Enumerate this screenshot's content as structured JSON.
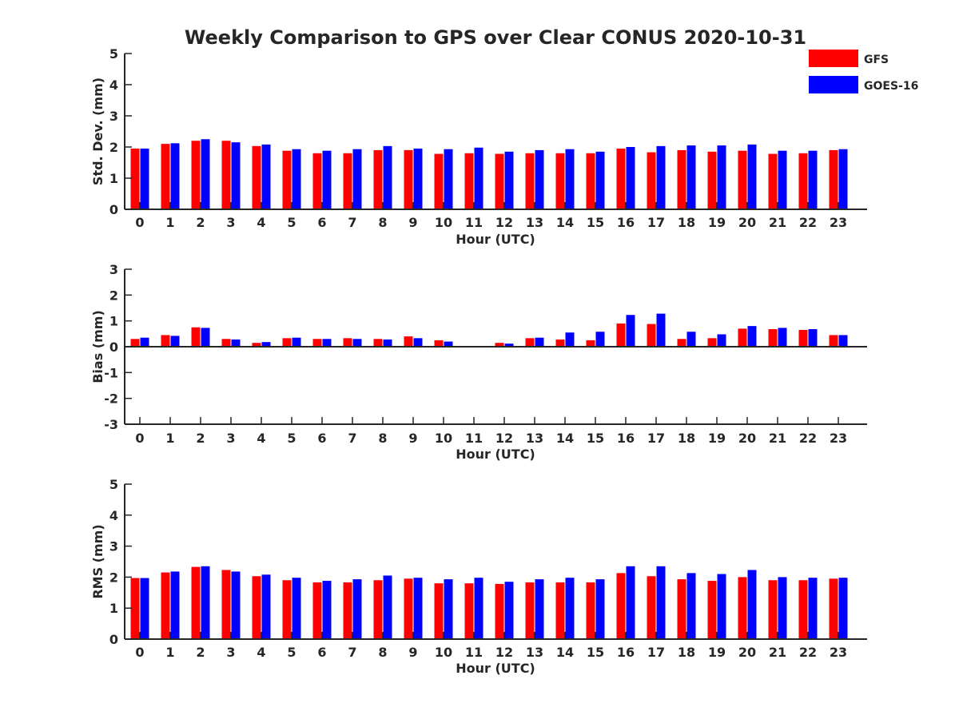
{
  "title": "Weekly Comparison to GPS over Clear CONUS 2020-10-31",
  "colors": {
    "GFS": "#ff0000",
    "GOES-16": "#0000ff",
    "axis": "#262626"
  },
  "legend": {
    "placement": "top-right",
    "entries": [
      {
        "name": "GFS",
        "color": "#ff0000"
      },
      {
        "name": "GOES-16",
        "color": "#0000ff"
      }
    ]
  },
  "chart_data": [
    {
      "type": "bar",
      "title": "Weekly Comparison to GPS over Clear CONUS 2020-10-31",
      "xlabel": "Hour (UTC)",
      "ylabel": "Std. Dev. (mm)",
      "ylim": [
        0,
        5
      ],
      "yticks": [
        0,
        1,
        2,
        3,
        4,
        5
      ],
      "grid": false,
      "categories": [
        "0",
        "1",
        "2",
        "3",
        "4",
        "5",
        "6",
        "7",
        "8",
        "9",
        "10",
        "11",
        "12",
        "13",
        "14",
        "15",
        "16",
        "17",
        "18",
        "19",
        "20",
        "21",
        "22",
        "23"
      ],
      "series": [
        {
          "name": "GFS",
          "values": [
            1.95,
            2.1,
            2.2,
            2.2,
            2.03,
            1.88,
            1.8,
            1.8,
            1.9,
            1.9,
            1.78,
            1.8,
            1.78,
            1.8,
            1.8,
            1.8,
            1.95,
            1.83,
            1.9,
            1.85,
            1.88,
            1.78,
            1.8,
            1.9
          ]
        },
        {
          "name": "GOES-16",
          "values": [
            1.95,
            2.12,
            2.25,
            2.15,
            2.08,
            1.93,
            1.88,
            1.93,
            2.03,
            1.95,
            1.93,
            1.98,
            1.85,
            1.9,
            1.93,
            1.85,
            2.0,
            2.03,
            2.05,
            2.05,
            2.08,
            1.88,
            1.88,
            1.93
          ]
        }
      ]
    },
    {
      "type": "bar",
      "xlabel": "Hour (UTC)",
      "ylabel": "Bias (mm)",
      "ylim": [
        -3,
        3
      ],
      "yticks": [
        -3,
        -2,
        -1,
        0,
        1,
        2,
        3
      ],
      "grid": false,
      "categories": [
        "0",
        "1",
        "2",
        "3",
        "4",
        "5",
        "6",
        "7",
        "8",
        "9",
        "10",
        "11",
        "12",
        "13",
        "14",
        "15",
        "16",
        "17",
        "18",
        "19",
        "20",
        "21",
        "22",
        "23"
      ],
      "series": [
        {
          "name": "GFS",
          "values": [
            0.3,
            0.45,
            0.75,
            0.3,
            0.15,
            0.33,
            0.3,
            0.33,
            0.3,
            0.4,
            0.25,
            0.0,
            0.15,
            0.33,
            0.28,
            0.25,
            0.9,
            0.88,
            0.3,
            0.33,
            0.7,
            0.68,
            0.65,
            0.45
          ]
        },
        {
          "name": "GOES-16",
          "values": [
            0.35,
            0.42,
            0.73,
            0.28,
            0.18,
            0.35,
            0.3,
            0.3,
            0.28,
            0.33,
            0.2,
            0.0,
            0.12,
            0.35,
            0.55,
            0.58,
            1.23,
            1.28,
            0.58,
            0.48,
            0.8,
            0.73,
            0.68,
            0.45
          ]
        }
      ]
    },
    {
      "type": "bar",
      "xlabel": "Hour (UTC)",
      "ylabel": "RMS (mm)",
      "ylim": [
        0,
        5
      ],
      "yticks": [
        0,
        1,
        2,
        3,
        4,
        5
      ],
      "grid": false,
      "categories": [
        "0",
        "1",
        "2",
        "3",
        "4",
        "5",
        "6",
        "7",
        "8",
        "9",
        "10",
        "11",
        "12",
        "13",
        "14",
        "15",
        "16",
        "17",
        "18",
        "19",
        "20",
        "21",
        "22",
        "23"
      ],
      "series": [
        {
          "name": "GFS",
          "values": [
            1.97,
            2.15,
            2.33,
            2.23,
            2.03,
            1.9,
            1.83,
            1.83,
            1.9,
            1.95,
            1.8,
            1.8,
            1.78,
            1.83,
            1.83,
            1.83,
            2.13,
            2.03,
            1.93,
            1.88,
            2.0,
            1.9,
            1.9,
            1.95
          ]
        },
        {
          "name": "GOES-16",
          "values": [
            1.97,
            2.18,
            2.35,
            2.18,
            2.08,
            1.98,
            1.88,
            1.93,
            2.05,
            1.98,
            1.93,
            1.98,
            1.85,
            1.93,
            1.98,
            1.93,
            2.35,
            2.35,
            2.13,
            2.1,
            2.23,
            2.0,
            1.98,
            1.98
          ]
        }
      ]
    }
  ]
}
